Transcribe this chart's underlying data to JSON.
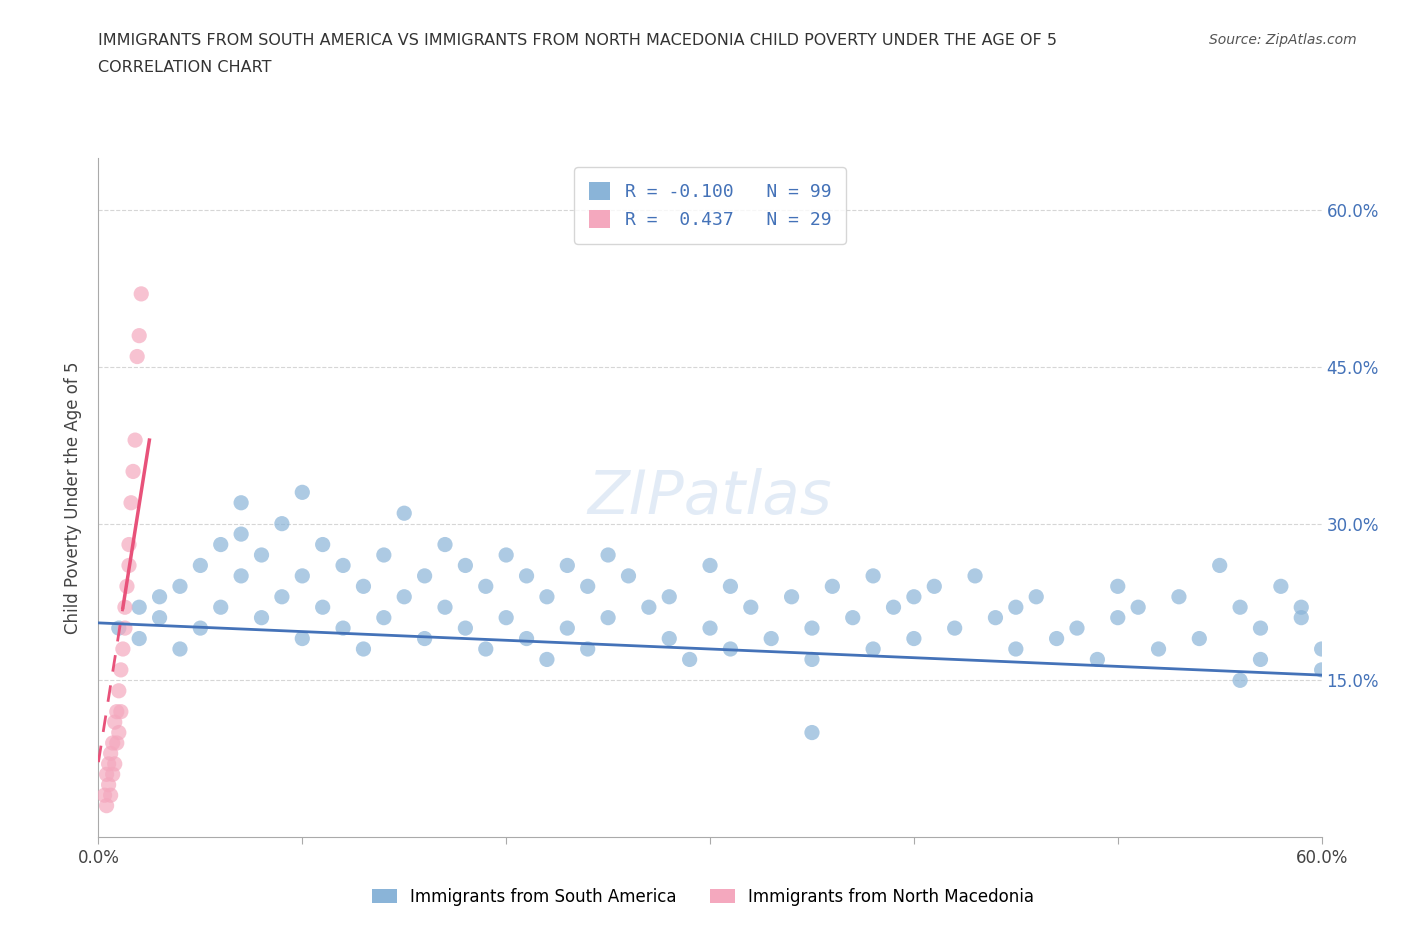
{
  "title_line1": "IMMIGRANTS FROM SOUTH AMERICA VS IMMIGRANTS FROM NORTH MACEDONIA CHILD POVERTY UNDER THE AGE OF 5",
  "title_line2": "CORRELATION CHART",
  "source_text": "Source: ZipAtlas.com",
  "ylabel": "Child Poverty Under the Age of 5",
  "legend_bottom_label1": "Immigrants from South America",
  "legend_bottom_label2": "Immigrants from North Macedonia",
  "R_south_america": -0.1,
  "N_south_america": 99,
  "R_north_macedonia": 0.437,
  "N_north_macedonia": 29,
  "color_blue": "#8ab4d8",
  "color_pink": "#f4a8be",
  "color_blue_line": "#4472b8",
  "color_pink_line": "#e8527a",
  "color_text_blue": "#4472b8",
  "background_color": "#ffffff",
  "xlim": [
    0.0,
    0.6
  ],
  "ylim": [
    0.0,
    0.65
  ],
  "south_america_x": [
    0.01,
    0.02,
    0.02,
    0.03,
    0.03,
    0.04,
    0.04,
    0.05,
    0.05,
    0.06,
    0.06,
    0.07,
    0.07,
    0.07,
    0.08,
    0.08,
    0.09,
    0.09,
    0.1,
    0.1,
    0.1,
    0.11,
    0.11,
    0.12,
    0.12,
    0.13,
    0.13,
    0.14,
    0.14,
    0.15,
    0.15,
    0.16,
    0.16,
    0.17,
    0.17,
    0.18,
    0.18,
    0.19,
    0.19,
    0.2,
    0.2,
    0.21,
    0.21,
    0.22,
    0.22,
    0.23,
    0.23,
    0.24,
    0.24,
    0.25,
    0.25,
    0.26,
    0.27,
    0.28,
    0.28,
    0.29,
    0.3,
    0.3,
    0.31,
    0.31,
    0.32,
    0.33,
    0.34,
    0.35,
    0.35,
    0.36,
    0.37,
    0.38,
    0.38,
    0.39,
    0.4,
    0.4,
    0.41,
    0.42,
    0.43,
    0.44,
    0.45,
    0.45,
    0.46,
    0.47,
    0.48,
    0.49,
    0.5,
    0.5,
    0.51,
    0.52,
    0.53,
    0.54,
    0.55,
    0.56,
    0.57,
    0.57,
    0.58,
    0.59,
    0.59,
    0.6,
    0.6,
    0.56,
    0.35
  ],
  "south_america_y": [
    0.2,
    0.19,
    0.22,
    0.21,
    0.23,
    0.24,
    0.18,
    0.26,
    0.2,
    0.28,
    0.22,
    0.29,
    0.25,
    0.32,
    0.27,
    0.21,
    0.3,
    0.23,
    0.33,
    0.25,
    0.19,
    0.28,
    0.22,
    0.26,
    0.2,
    0.24,
    0.18,
    0.27,
    0.21,
    0.31,
    0.23,
    0.25,
    0.19,
    0.28,
    0.22,
    0.26,
    0.2,
    0.24,
    0.18,
    0.27,
    0.21,
    0.25,
    0.19,
    0.23,
    0.17,
    0.26,
    0.2,
    0.24,
    0.18,
    0.27,
    0.21,
    0.25,
    0.22,
    0.19,
    0.23,
    0.17,
    0.26,
    0.2,
    0.24,
    0.18,
    0.22,
    0.19,
    0.23,
    0.2,
    0.17,
    0.24,
    0.21,
    0.25,
    0.18,
    0.22,
    0.23,
    0.19,
    0.24,
    0.2,
    0.25,
    0.21,
    0.22,
    0.18,
    0.23,
    0.19,
    0.2,
    0.17,
    0.24,
    0.21,
    0.22,
    0.18,
    0.23,
    0.19,
    0.26,
    0.22,
    0.2,
    0.17,
    0.24,
    0.21,
    0.22,
    0.18,
    0.16,
    0.15,
    0.1
  ],
  "north_macedonia_x": [
    0.003,
    0.004,
    0.004,
    0.005,
    0.005,
    0.006,
    0.006,
    0.007,
    0.007,
    0.008,
    0.008,
    0.009,
    0.009,
    0.01,
    0.01,
    0.011,
    0.011,
    0.012,
    0.013,
    0.013,
    0.014,
    0.015,
    0.015,
    0.016,
    0.017,
    0.018,
    0.019,
    0.02,
    0.021
  ],
  "north_macedonia_y": [
    0.04,
    0.06,
    0.03,
    0.05,
    0.07,
    0.04,
    0.08,
    0.06,
    0.09,
    0.07,
    0.11,
    0.09,
    0.12,
    0.1,
    0.14,
    0.12,
    0.16,
    0.18,
    0.2,
    0.22,
    0.24,
    0.26,
    0.28,
    0.32,
    0.35,
    0.38,
    0.46,
    0.48,
    0.52
  ]
}
